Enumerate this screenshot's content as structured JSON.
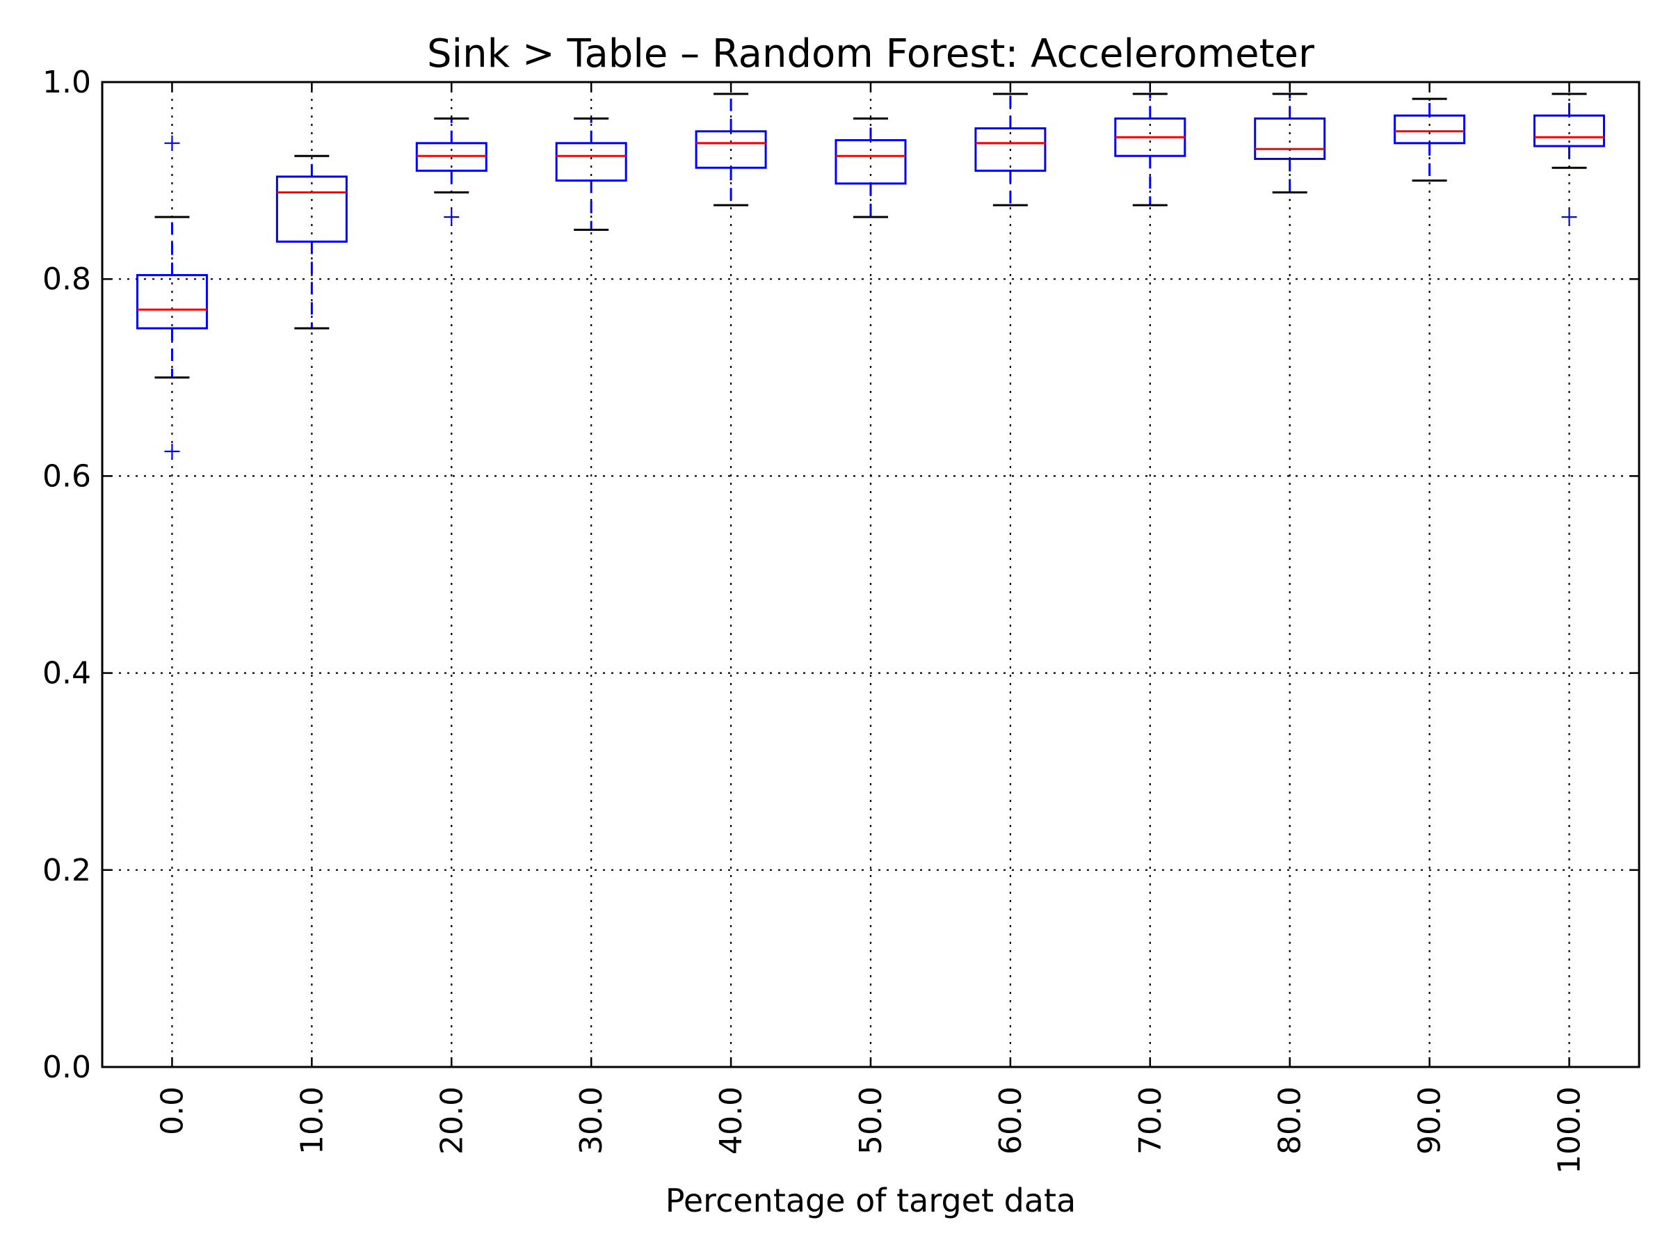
{
  "chart_data": {
    "type": "boxplot",
    "title": "Sink > Table – Random Forest: Accelerometer",
    "xlabel": "Percentage of target data",
    "ylabel": "",
    "categories": [
      "0.0",
      "10.0",
      "20.0",
      "30.0",
      "40.0",
      "50.0",
      "60.0",
      "70.0",
      "80.0",
      "90.0",
      "100.0"
    ],
    "ylim": [
      0.0,
      1.0
    ],
    "yticks": [
      "0.0",
      "0.2",
      "0.4",
      "0.6",
      "0.8",
      "1.0"
    ],
    "grid": true,
    "boxes": [
      {
        "whislo": 0.7,
        "q1": 0.75,
        "med": 0.769,
        "q3": 0.804,
        "whishi": 0.863,
        "fliers": [
          0.938,
          0.625
        ]
      },
      {
        "whislo": 0.75,
        "q1": 0.838,
        "med": 0.888,
        "q3": 0.904,
        "whishi": 0.925,
        "fliers": []
      },
      {
        "whislo": 0.888,
        "q1": 0.91,
        "med": 0.925,
        "q3": 0.938,
        "whishi": 0.963,
        "fliers": [
          0.863
        ]
      },
      {
        "whislo": 0.85,
        "q1": 0.9,
        "med": 0.925,
        "q3": 0.938,
        "whishi": 0.963,
        "fliers": []
      },
      {
        "whislo": 0.875,
        "q1": 0.913,
        "med": 0.938,
        "q3": 0.95,
        "whishi": 0.988,
        "fliers": []
      },
      {
        "whislo": 0.863,
        "q1": 0.897,
        "med": 0.925,
        "q3": 0.941,
        "whishi": 0.963,
        "fliers": []
      },
      {
        "whislo": 0.875,
        "q1": 0.91,
        "med": 0.938,
        "q3": 0.953,
        "whishi": 0.988,
        "fliers": []
      },
      {
        "whislo": 0.875,
        "q1": 0.925,
        "med": 0.944,
        "q3": 0.963,
        "whishi": 0.988,
        "fliers": []
      },
      {
        "whislo": 0.888,
        "q1": 0.922,
        "med": 0.932,
        "q3": 0.963,
        "whishi": 0.988,
        "fliers": []
      },
      {
        "whislo": 0.9,
        "q1": 0.938,
        "med": 0.95,
        "q3": 0.966,
        "whishi": 0.983,
        "fliers": []
      },
      {
        "whislo": 0.913,
        "q1": 0.935,
        "med": 0.944,
        "q3": 0.966,
        "whishi": 0.988,
        "fliers": [
          0.863
        ]
      }
    ],
    "colors": {
      "box": "#0000ff",
      "median": "#ff0000",
      "whisker_cap": "#000000",
      "flier": "#0000ff"
    }
  }
}
